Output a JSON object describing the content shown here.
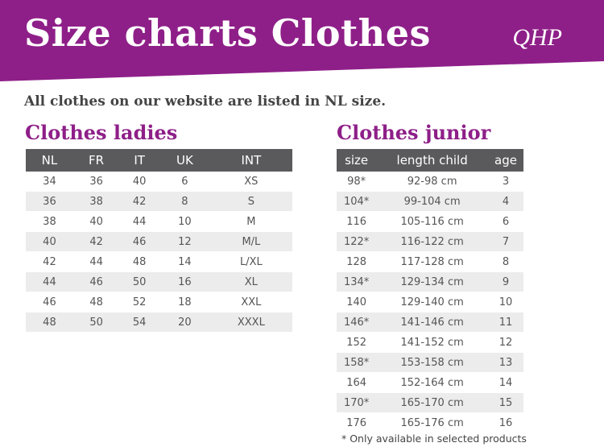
{
  "header": {
    "title": "Size charts Clothes",
    "logo": "QHP"
  },
  "intro": "All clothes on our website are listed in NL size.",
  "ladies": {
    "title": "Clothes ladies",
    "columns": [
      "NL",
      "FR",
      "IT",
      "UK",
      "INT"
    ],
    "rows": [
      [
        34,
        36,
        40,
        6,
        "XS"
      ],
      [
        36,
        38,
        42,
        8,
        "S"
      ],
      [
        38,
        40,
        44,
        10,
        "M"
      ],
      [
        40,
        42,
        46,
        12,
        "M/L"
      ],
      [
        42,
        44,
        48,
        14,
        "L/XL"
      ],
      [
        44,
        46,
        50,
        16,
        "XL"
      ],
      [
        46,
        48,
        52,
        18,
        "XXL"
      ],
      [
        48,
        50,
        54,
        20,
        "XXXL"
      ]
    ]
  },
  "junior": {
    "title": "Clothes junior",
    "columns": [
      "size",
      "length child",
      "age"
    ],
    "rows": [
      [
        "98*",
        "92-98 cm",
        3
      ],
      [
        "104*",
        "99-104 cm",
        4
      ],
      [
        116,
        "105-116 cm",
        6
      ],
      [
        "122*",
        "116-122 cm",
        7
      ],
      [
        128,
        "117-128 cm",
        8
      ],
      [
        "134*",
        "129-134 cm",
        9
      ],
      [
        140,
        "129-140 cm",
        10
      ],
      [
        "146*",
        "141-146 cm",
        11
      ],
      [
        152,
        "141-152 cm",
        12
      ],
      [
        "158*",
        "153-158 cm",
        13
      ],
      [
        164,
        "152-164 cm",
        14
      ],
      [
        "170*",
        "165-170 cm",
        15
      ],
      [
        176,
        "165-176 cm",
        16
      ]
    ]
  },
  "footnote": "* Only available in selected products"
}
